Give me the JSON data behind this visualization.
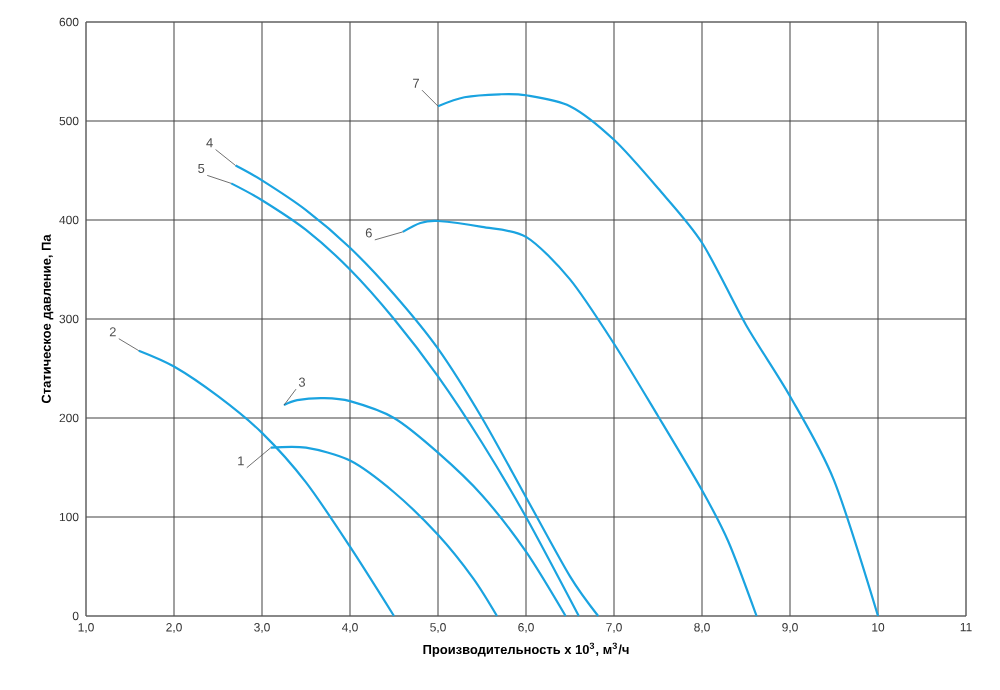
{
  "chart_data": {
    "type": "line",
    "xlabel": "Производительность x 10$^{3}$, м$^{3}$/ч",
    "ylabel": "Статическое давление, Па",
    "xlim": [
      1,
      11
    ],
    "ylim": [
      0,
      600
    ],
    "xticks": [
      {
        "value": 1,
        "label": "1,0"
      },
      {
        "value": 2,
        "label": "2,0"
      },
      {
        "value": 3,
        "label": "3,0"
      },
      {
        "value": 4,
        "label": "4,0"
      },
      {
        "value": 5,
        "label": "5,0"
      },
      {
        "value": 6,
        "label": "6,0"
      },
      {
        "value": 7,
        "label": "7,0"
      },
      {
        "value": 8,
        "label": "8,0"
      },
      {
        "value": 9,
        "label": "9,0"
      },
      10,
      11
    ],
    "yticks": [
      0,
      100,
      200,
      300,
      400,
      500,
      600
    ],
    "grid": true,
    "legend": false,
    "marker": "none",
    "line_style": "solid",
    "series": [
      {
        "name": "1",
        "color": "#1aa3e0",
        "x": [
          3.1,
          3.5,
          4.0,
          4.5,
          5.0,
          5.4,
          5.67
        ],
        "values": [
          170,
          170,
          157,
          125,
          82,
          38,
          0
        ]
      },
      {
        "name": "2",
        "color": "#1aa3e0",
        "x": [
          1.6,
          2.0,
          2.5,
          3.0,
          3.5,
          4.0,
          4.5
        ],
        "values": [
          268,
          252,
          222,
          185,
          135,
          70,
          0
        ]
      },
      {
        "name": "3",
        "color": "#1aa3e0",
        "x": [
          3.25,
          3.4,
          3.7,
          4.0,
          4.5,
          5.0,
          5.5,
          6.0,
          6.45
        ],
        "values": [
          213,
          218,
          220,
          217,
          200,
          165,
          122,
          65,
          0
        ]
      },
      {
        "name": "4",
        "color": "#1aa3e0",
        "x": [
          2.7,
          3.0,
          3.5,
          4.0,
          4.5,
          5.0,
          5.5,
          6.0,
          6.5,
          6.82
        ],
        "values": [
          455,
          440,
          410,
          372,
          325,
          270,
          200,
          120,
          40,
          0
        ]
      },
      {
        "name": "5",
        "color": "#1aa3e0",
        "x": [
          2.65,
          3.0,
          3.5,
          4.0,
          4.5,
          5.0,
          5.5,
          6.0,
          6.6
        ],
        "values": [
          437,
          420,
          390,
          350,
          300,
          242,
          175,
          100,
          0
        ]
      },
      {
        "name": "6",
        "color": "#1aa3e0",
        "x": [
          4.6,
          4.8,
          5.0,
          5.5,
          6.0,
          6.5,
          7.0,
          7.5,
          8.0,
          8.3,
          8.62
        ],
        "values": [
          388,
          397,
          399,
          393,
          383,
          340,
          275,
          202,
          127,
          75,
          0
        ]
      },
      {
        "name": "7",
        "color": "#1aa3e0",
        "x": [
          5.0,
          5.3,
          5.7,
          6.0,
          6.5,
          7.0,
          7.5,
          8.0,
          8.5,
          9.0,
          9.5,
          10.0
        ],
        "values": [
          515,
          524,
          527,
          526,
          515,
          481,
          432,
          377,
          294,
          222,
          137,
          0
        ]
      }
    ]
  }
}
